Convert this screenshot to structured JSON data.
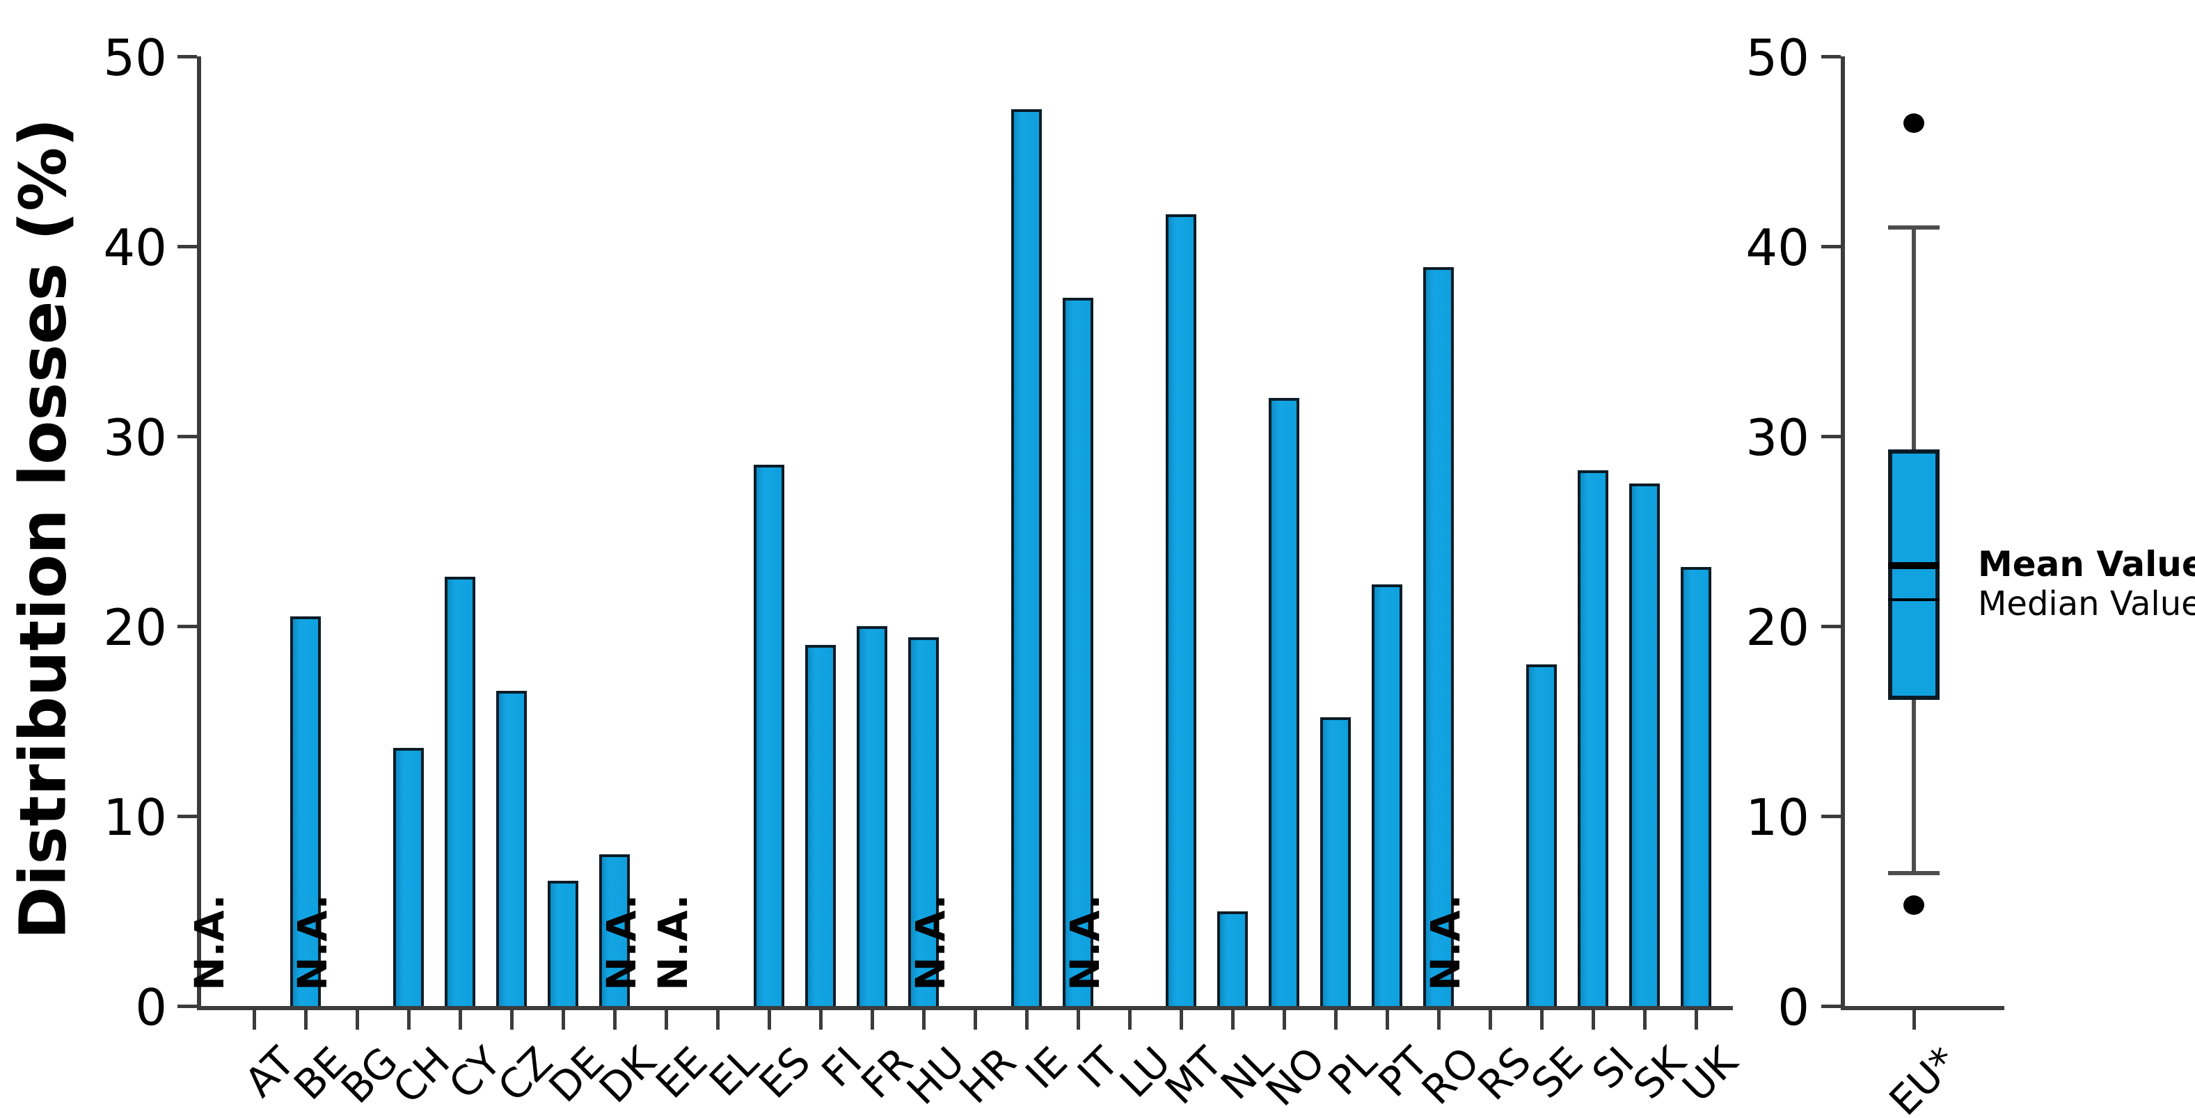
{
  "chart_data": {
    "type": "bar",
    "title": "",
    "xlabel": "",
    "ylabel": "Distribution losses (%)",
    "ylim": [
      0,
      50
    ],
    "yticks": [
      0,
      10,
      20,
      30,
      40,
      50
    ],
    "grid": false,
    "na_label": "N.A.",
    "categories": [
      "AT",
      "BE",
      "BG",
      "CH",
      "CY",
      "CZ",
      "DE",
      "DK",
      "EE",
      "EL",
      "ES",
      "FI",
      "FR",
      "HU",
      "HR",
      "IE",
      "IT",
      "LU",
      "MT",
      "NL",
      "NO",
      "PL",
      "PT",
      "RO",
      "RS",
      "SE",
      "SI",
      "SK",
      "UK"
    ],
    "values": [
      null,
      20.5,
      null,
      13.6,
      22.6,
      16.6,
      6.6,
      8.0,
      null,
      null,
      28.5,
      19.0,
      20.0,
      19.4,
      null,
      47.2,
      37.3,
      null,
      41.7,
      5.0,
      32.0,
      15.2,
      22.2,
      38.9,
      null,
      18.0,
      28.2,
      27.5,
      23.1
    ],
    "colors": {
      "bar_fill": "#0fa0de",
      "bar_border": "#0c1c26",
      "axis": "#3c3c3c",
      "whisker": "#4d4d4d",
      "text": "#000000"
    },
    "boxplot": {
      "category": "EU*",
      "whisker_low": 7.0,
      "q1": 16.1,
      "median": 21.4,
      "mean": 23.2,
      "q3": 29.3,
      "whisker_high": 41.0,
      "outliers": [
        46.5,
        5.3
      ],
      "mean_label": "Mean Value",
      "median_label": "Median Value"
    }
  }
}
